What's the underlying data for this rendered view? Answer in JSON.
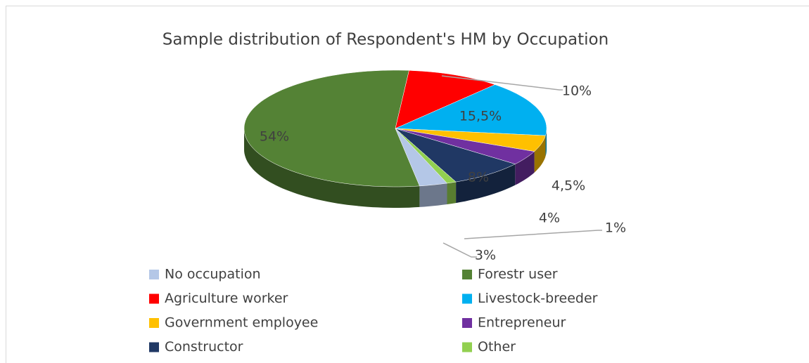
{
  "chart_data": {
    "type": "pie3d",
    "title": "Sample distribution of Respondent's HM by Occupation",
    "categories": [
      "No occupation",
      "Forestr user",
      "Agriculture worker",
      "Livestock-breeder",
      "Government employee",
      "Entrepreneur",
      "Constructor",
      "Other"
    ],
    "values": [
      3,
      54,
      10,
      15.5,
      4.5,
      4,
      8,
      1
    ],
    "value_labels": [
      "3%",
      "54%",
      "10%",
      "15,5%",
      "4,5%",
      "4%",
      "8%",
      "1%"
    ],
    "colors": [
      "#b4c7e7",
      "#548235",
      "#ff0000",
      "#00b0f0",
      "#ffc000",
      "#7030a0",
      "#203864",
      "#92d050"
    ],
    "legend": "bottom"
  }
}
